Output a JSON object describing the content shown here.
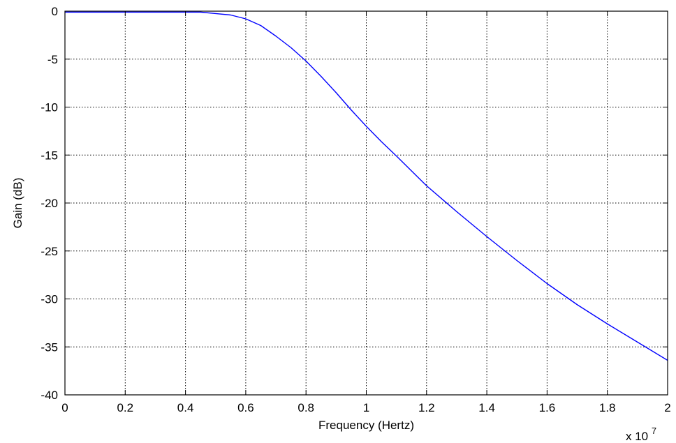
{
  "chart_data": {
    "type": "line",
    "title": "",
    "xlabel": "Frequency (Hertz)",
    "ylabel": "Gain (dB)",
    "x_multiplier_label": "x 10",
    "x_multiplier_exponent": "7",
    "xlim": [
      0,
      2
    ],
    "ylim": [
      -40,
      0
    ],
    "x_ticks": [
      0,
      0.2,
      0.4,
      0.6,
      0.8,
      1,
      1.2,
      1.4,
      1.6,
      1.8,
      2
    ],
    "x_tick_labels": [
      "0",
      "0.2",
      "0.4",
      "0.6",
      "0.8",
      "1",
      "1.2",
      "1.4",
      "1.6",
      "1.8",
      "2"
    ],
    "y_ticks": [
      0,
      -5,
      -10,
      -15,
      -20,
      -25,
      -30,
      -35,
      -40
    ],
    "y_tick_labels": [
      "0",
      "-5",
      "-10",
      "-15",
      "-20",
      "-25",
      "-30",
      "-35",
      "-40"
    ],
    "grid": true,
    "series": [
      {
        "color": "#0000ff",
        "x": [
          0,
          0.1,
          0.2,
          0.3,
          0.4,
          0.45,
          0.5,
          0.55,
          0.6,
          0.65,
          0.7,
          0.75,
          0.8,
          0.85,
          0.9,
          0.95,
          1.0,
          1.05,
          1.1,
          1.2,
          1.3,
          1.4,
          1.5,
          1.6,
          1.7,
          1.8,
          1.9,
          2.0
        ],
        "y": [
          -0.1,
          -0.1,
          -0.1,
          -0.1,
          -0.1,
          -0.1,
          -0.25,
          -0.4,
          -0.8,
          -1.5,
          -2.6,
          -3.8,
          -5.2,
          -6.8,
          -8.5,
          -10.3,
          -12.0,
          -13.6,
          -15.1,
          -18.2,
          -20.9,
          -23.5,
          -26.0,
          -28.4,
          -30.6,
          -32.6,
          -34.5,
          -36.4
        ]
      }
    ]
  }
}
